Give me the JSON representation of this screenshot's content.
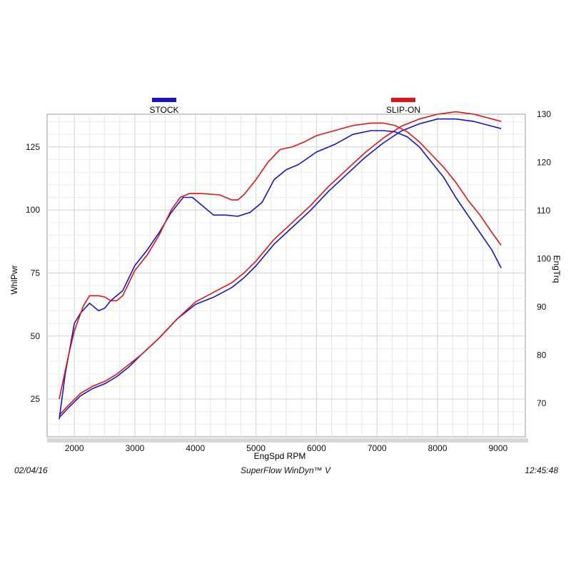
{
  "chart_data": {
    "type": "line",
    "xlabel": "EngSpd  RPM",
    "ylabel_left": "WhlPwr",
    "ylabel_right": "EngTrq",
    "xlim": [
      1550,
      9450
    ],
    "ylim_left": [
      10,
      138
    ],
    "ylim_right": [
      63,
      130
    ],
    "x_ticks": [
      2000,
      3000,
      4000,
      5000,
      6000,
      7000,
      8000,
      9000
    ],
    "y_ticks_left": [
      25,
      50,
      75,
      100,
      125
    ],
    "y_ticks_right": [
      70,
      80,
      90,
      100,
      110,
      120,
      130
    ],
    "grid": true,
    "legend_position": "top",
    "series": [
      {
        "name": "STOCK",
        "color": "#1414c8",
        "power": [
          [
            1750,
            17
          ],
          [
            1850,
            35
          ],
          [
            2000,
            55
          ],
          [
            2100,
            59
          ],
          [
            2250,
            63
          ],
          [
            2400,
            60
          ],
          [
            2500,
            61
          ],
          [
            2600,
            64
          ],
          [
            2800,
            68
          ],
          [
            3000,
            78
          ],
          [
            3200,
            84
          ],
          [
            3400,
            91
          ],
          [
            3600,
            99
          ],
          [
            3800,
            105
          ],
          [
            3950,
            105
          ],
          [
            4100,
            102
          ],
          [
            4300,
            98
          ],
          [
            4500,
            98
          ],
          [
            4700,
            97.5
          ],
          [
            4900,
            99
          ],
          [
            5100,
            103
          ],
          [
            5300,
            112
          ],
          [
            5500,
            116
          ],
          [
            5700,
            118
          ],
          [
            6000,
            123
          ],
          [
            6300,
            126
          ],
          [
            6600,
            130
          ],
          [
            6900,
            131.5
          ],
          [
            7100,
            131.5
          ],
          [
            7300,
            131
          ],
          [
            7500,
            129
          ],
          [
            7700,
            125
          ],
          [
            7900,
            119
          ],
          [
            8100,
            113
          ],
          [
            8300,
            105
          ],
          [
            8500,
            98
          ],
          [
            8700,
            91
          ],
          [
            8900,
            84
          ],
          [
            9050,
            77
          ]
        ],
        "torque": [
          [
            1750,
            67
          ],
          [
            1900,
            69
          ],
          [
            2100,
            71.5
          ],
          [
            2300,
            73
          ],
          [
            2500,
            74
          ],
          [
            2700,
            75.5
          ],
          [
            2900,
            77.5
          ],
          [
            3100,
            80
          ],
          [
            3400,
            83.5
          ],
          [
            3700,
            87.5
          ],
          [
            4000,
            90.5
          ],
          [
            4300,
            92
          ],
          [
            4600,
            94
          ],
          [
            4800,
            96
          ],
          [
            5000,
            98.5
          ],
          [
            5300,
            103
          ],
          [
            5600,
            106.5
          ],
          [
            5900,
            110
          ],
          [
            6200,
            114
          ],
          [
            6500,
            117.5
          ],
          [
            6800,
            121
          ],
          [
            7100,
            124
          ],
          [
            7400,
            126.5
          ],
          [
            7700,
            128
          ],
          [
            8000,
            129
          ],
          [
            8300,
            129
          ],
          [
            8600,
            128.5
          ],
          [
            8900,
            127.5
          ],
          [
            9050,
            127
          ]
        ]
      },
      {
        "name": "SLIP-ON",
        "color": "#e01414",
        "power": [
          [
            1750,
            25
          ],
          [
            1900,
            42
          ],
          [
            2000,
            52
          ],
          [
            2150,
            62
          ],
          [
            2250,
            66
          ],
          [
            2400,
            66
          ],
          [
            2500,
            65.5
          ],
          [
            2600,
            64
          ],
          [
            2700,
            64
          ],
          [
            2800,
            66
          ],
          [
            3000,
            76
          ],
          [
            3200,
            82
          ],
          [
            3400,
            90
          ],
          [
            3600,
            100
          ],
          [
            3750,
            105
          ],
          [
            3900,
            106.5
          ],
          [
            4100,
            106.5
          ],
          [
            4400,
            106
          ],
          [
            4600,
            104
          ],
          [
            4700,
            104
          ],
          [
            4800,
            106
          ],
          [
            5000,
            112
          ],
          [
            5200,
            119
          ],
          [
            5400,
            124
          ],
          [
            5600,
            125
          ],
          [
            5800,
            127
          ],
          [
            6000,
            129.5
          ],
          [
            6300,
            131.5
          ],
          [
            6600,
            133.5
          ],
          [
            6900,
            134.5
          ],
          [
            7100,
            134.5
          ],
          [
            7300,
            133.5
          ],
          [
            7500,
            131
          ],
          [
            7700,
            127
          ],
          [
            7900,
            122
          ],
          [
            8100,
            117
          ],
          [
            8300,
            111
          ],
          [
            8500,
            104
          ],
          [
            8700,
            98
          ],
          [
            8900,
            91
          ],
          [
            9050,
            86
          ]
        ],
        "torque": [
          [
            1750,
            67.5
          ],
          [
            1900,
            69.5
          ],
          [
            2100,
            72
          ],
          [
            2300,
            73.5
          ],
          [
            2500,
            74.5
          ],
          [
            2700,
            76
          ],
          [
            2900,
            78
          ],
          [
            3100,
            80
          ],
          [
            3400,
            83.5
          ],
          [
            3700,
            87.5
          ],
          [
            4000,
            91
          ],
          [
            4300,
            93
          ],
          [
            4600,
            95
          ],
          [
            4800,
            97
          ],
          [
            5000,
            99.5
          ],
          [
            5300,
            104
          ],
          [
            5600,
            107.5
          ],
          [
            5900,
            111
          ],
          [
            6200,
            115
          ],
          [
            6500,
            118.5
          ],
          [
            6800,
            122
          ],
          [
            7100,
            125
          ],
          [
            7400,
            127.5
          ],
          [
            7700,
            129
          ],
          [
            8000,
            130
          ],
          [
            8300,
            130.5
          ],
          [
            8600,
            130
          ],
          [
            8900,
            129
          ],
          [
            9050,
            128.5
          ]
        ]
      }
    ]
  },
  "footer": {
    "date": "02/04/16",
    "application": "SuperFlow WinDyn™ V",
    "time": "12:45:48"
  }
}
